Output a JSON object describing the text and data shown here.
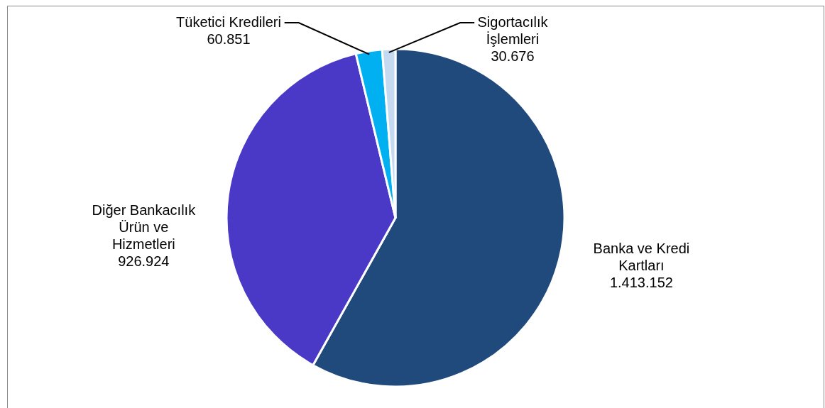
{
  "chart_data": {
    "type": "pie",
    "categories": [
      "Banka ve Kredi Kartları",
      "Diğer Bankacılık Ürün ve Hizmetleri",
      "Tüketici Kredileri",
      "Sigortacılık İşlemleri"
    ],
    "values": [
      1413152,
      926924,
      60851,
      30676
    ],
    "value_labels": [
      "1.413.152",
      "926.924",
      "60.851",
      "30.676"
    ],
    "colors": [
      "#214a7c",
      "#4a39c6",
      "#00b0f0",
      "#c5d9f1"
    ]
  }
}
